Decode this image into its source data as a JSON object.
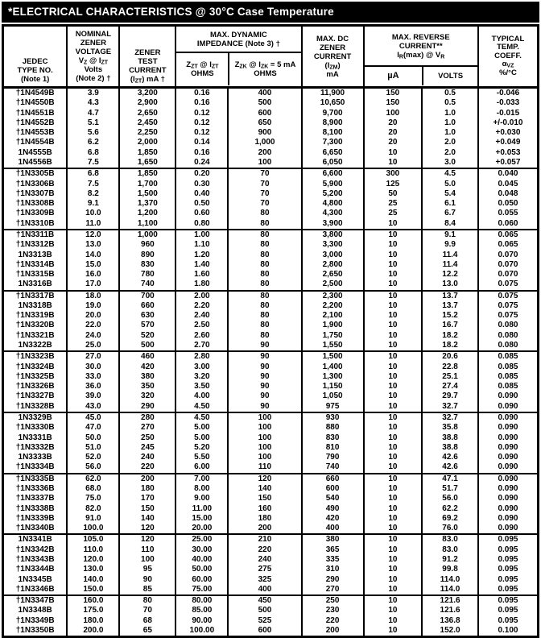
{
  "title": "*ELECTRICAL CHARACTERISTICS @ 30°C Case Temperature",
  "header": {
    "jedec": [
      "JEDEC",
      "TYPE NO.",
      "(Note 1)"
    ],
    "nominal": [
      "NOMINAL",
      "ZENER",
      "VOLTAGE",
      "V~Z~ @ I~ZT~",
      "Volts",
      "(Note 2) †"
    ],
    "test_current": [
      "ZENER",
      "TEST",
      "CURRENT",
      "(I~ZT~) mA †"
    ],
    "impedance_group": [
      "MAX. DYNAMIC",
      "IMPEDANCE (Note 3) †"
    ],
    "zzt": [
      "Z~ZT~ @ I~ZT~",
      "OHMS"
    ],
    "zzk": [
      "Z~ZK~ @ I~ZK~ = 5 mA",
      "OHMS"
    ],
    "izm": [
      "MAX. DC",
      "ZENER",
      "CURRENT",
      "(I~ZM~)",
      "mA"
    ],
    "reverse_group": [
      "MAX. REVERSE",
      "CURRENT**",
      "I~R~(max) @ V~R~"
    ],
    "ua": "µA",
    "volts": "VOLTS",
    "temp": [
      "TYPICAL",
      "TEMP.",
      "COEFF.",
      "α~VZ~",
      "%/°C"
    ]
  },
  "groups": [
    {
      "rows": [
        [
          "†1N4549B",
          "3.9",
          "3,200",
          "0.16",
          "400",
          "11,900",
          "150",
          "0.5",
          "-0.046"
        ],
        [
          "†1N4550B",
          "4.3",
          "2,900",
          "0.16",
          "500",
          "10,650",
          "150",
          "0.5",
          "-0.033"
        ],
        [
          "†1N4551B",
          "4.7",
          "2,650",
          "0.12",
          "600",
          "9,700",
          "100",
          "1.0",
          "-0.015"
        ],
        [
          "†1N4552B",
          "5.1",
          "2,450",
          "0.12",
          "650",
          "8,900",
          "20",
          "1.0",
          "+/-0.010"
        ],
        [
          "†1N4553B",
          "5.6",
          "2,250",
          "0.12",
          "900",
          "8,100",
          "20",
          "1.0",
          "+0.030"
        ],
        [
          "†1N4554B",
          "6.2",
          "2,000",
          "0.14",
          "1,000",
          "7,300",
          "20",
          "2.0",
          "+0.049"
        ],
        [
          "1N4555B",
          "6.8",
          "1,850",
          "0.16",
          "200",
          "6,650",
          "10",
          "2.0",
          "+0.053"
        ],
        [
          "1N4556B",
          "7.5",
          "1,650",
          "0.24",
          "100",
          "6,050",
          "10",
          "3.0",
          "+0.057"
        ]
      ]
    },
    {
      "rows": [
        [
          "†1N3305B",
          "6.8",
          "1,850",
          "0.20",
          "70",
          "6,600",
          "300",
          "4.5",
          "0.040"
        ],
        [
          "†1N3306B",
          "7.5",
          "1,700",
          "0.30",
          "70",
          "5,900",
          "125",
          "5.0",
          "0.045"
        ],
        [
          "†1N3307B",
          "8.2",
          "1,500",
          "0.40",
          "70",
          "5,200",
          "50",
          "5.4",
          "0.048"
        ],
        [
          "†1N3308B",
          "9.1",
          "1,370",
          "0.50",
          "70",
          "4,800",
          "25",
          "6.1",
          "0.050"
        ],
        [
          "†1N3309B",
          "10.0",
          "1,200",
          "0.60",
          "80",
          "4,300",
          "25",
          "6.7",
          "0.055"
        ],
        [
          "†1N3310B",
          "11.0",
          "1,100",
          "0.80",
          "80",
          "3,900",
          "10",
          "8.4",
          "0.060"
        ]
      ]
    },
    {
      "rows": [
        [
          "†1N3311B",
          "12.0",
          "1,000",
          "1.00",
          "80",
          "3,800",
          "10",
          "9.1",
          "0.065"
        ],
        [
          "†1N3312B",
          "13.0",
          "960",
          "1.10",
          "80",
          "3,300",
          "10",
          "9.9",
          "0.065"
        ],
        [
          "1N3313B",
          "14.0",
          "890",
          "1.20",
          "80",
          "3,000",
          "10",
          "11.4",
          "0.070"
        ],
        [
          "†1N3314B",
          "15.0",
          "830",
          "1.40",
          "80",
          "2,800",
          "10",
          "11.4",
          "0.070"
        ],
        [
          "†1N3315B",
          "16.0",
          "780",
          "1.60",
          "80",
          "2,650",
          "10",
          "12.2",
          "0.070"
        ],
        [
          "1N3316B",
          "17.0",
          "740",
          "1.80",
          "80",
          "2,500",
          "10",
          "13.0",
          "0.075"
        ]
      ]
    },
    {
      "rows": [
        [
          "†1N3317B",
          "18.0",
          "700",
          "2.00",
          "80",
          "2,300",
          "10",
          "13.7",
          "0.075"
        ],
        [
          "1N3318B",
          "19.0",
          "660",
          "2.20",
          "80",
          "2,200",
          "10",
          "13.7",
          "0.075"
        ],
        [
          "†1N3319B",
          "20.0",
          "630",
          "2.40",
          "80",
          "2,100",
          "10",
          "15.2",
          "0.075"
        ],
        [
          "†1N3320B",
          "22.0",
          "570",
          "2.50",
          "80",
          "1,900",
          "10",
          "16.7",
          "0.080"
        ],
        [
          "†1N3321B",
          "24.0",
          "520",
          "2.60",
          "80",
          "1,750",
          "10",
          "18.2",
          "0.080"
        ],
        [
          "1N3322B",
          "25.0",
          "500",
          "2.70",
          "90",
          "1,550",
          "10",
          "18.2",
          "0.080"
        ]
      ]
    },
    {
      "rows": [
        [
          "†1N3323B",
          "27.0",
          "460",
          "2.80",
          "90",
          "1,500",
          "10",
          "20.6",
          "0.085"
        ],
        [
          "†1N3324B",
          "30.0",
          "420",
          "3.00",
          "90",
          "1,400",
          "10",
          "22.8",
          "0.085"
        ],
        [
          "†1N3325B",
          "33.0",
          "380",
          "3.20",
          "90",
          "1,300",
          "10",
          "25.1",
          "0.085"
        ],
        [
          "†1N3326B",
          "36.0",
          "350",
          "3.50",
          "90",
          "1,150",
          "10",
          "27.4",
          "0.085"
        ],
        [
          "†1N3327B",
          "39.0",
          "320",
          "4.00",
          "90",
          "1,050",
          "10",
          "29.7",
          "0.090"
        ],
        [
          "†1N3328B",
          "43.0",
          "290",
          "4.50",
          "90",
          "975",
          "10",
          "32.7",
          "0.090"
        ]
      ]
    },
    {
      "rows": [
        [
          "1N3329B",
          "45.0",
          "280",
          "4.50",
          "100",
          "930",
          "10",
          "32.7",
          "0.090"
        ],
        [
          "†1N3330B",
          "47.0",
          "270",
          "5.00",
          "100",
          "880",
          "10",
          "35.8",
          "0.090"
        ],
        [
          "1N3331B",
          "50.0",
          "250",
          "5.00",
          "100",
          "830",
          "10",
          "38.8",
          "0.090"
        ],
        [
          "†1N3332B",
          "51.0",
          "245",
          "5.20",
          "100",
          "810",
          "10",
          "38.8",
          "0.090"
        ],
        [
          "1N3333B",
          "52.0",
          "240",
          "5.50",
          "100",
          "790",
          "10",
          "42.6",
          "0.090"
        ],
        [
          "†1N3334B",
          "56.0",
          "220",
          "6.00",
          "110",
          "740",
          "10",
          "42.6",
          "0.090"
        ]
      ]
    },
    {
      "rows": [
        [
          "†1N3335B",
          "62.0",
          "200",
          "7.00",
          "120",
          "660",
          "10",
          "47.1",
          "0.090"
        ],
        [
          "†1N3336B",
          "68.0",
          "180",
          "8.00",
          "140",
          "600",
          "10",
          "51.7",
          "0.090"
        ],
        [
          "†1N3337B",
          "75.0",
          "170",
          "9.00",
          "150",
          "540",
          "10",
          "56.0",
          "0.090"
        ],
        [
          "†1N3338B",
          "82.0",
          "150",
          "11.00",
          "160",
          "490",
          "10",
          "62.2",
          "0.090"
        ],
        [
          "†1N3339B",
          "91.0",
          "140",
          "15.00",
          "180",
          "420",
          "10",
          "69.2",
          "0.090"
        ],
        [
          "†1N3340B",
          "100.0",
          "120",
          "20.00",
          "200",
          "400",
          "10",
          "76.0",
          "0.090"
        ]
      ]
    },
    {
      "rows": [
        [
          "1N3341B",
          "105.0",
          "120",
          "25.00",
          "210",
          "380",
          "10",
          "83.0",
          "0.095"
        ],
        [
          "†1N3342B",
          "110.0",
          "110",
          "30.00",
          "220",
          "365",
          "10",
          "83.0",
          "0.095"
        ],
        [
          "†1N3343B",
          "120.0",
          "100",
          "40.00",
          "240",
          "335",
          "10",
          "91.2",
          "0.095"
        ],
        [
          "†1N3344B",
          "130.0",
          "95",
          "50.00",
          "275",
          "310",
          "10",
          "99.8",
          "0.095"
        ],
        [
          "1N3345B",
          "140.0",
          "90",
          "60.00",
          "325",
          "290",
          "10",
          "114.0",
          "0.095"
        ],
        [
          "†1N3346B",
          "150.0",
          "85",
          "75.00",
          "400",
          "270",
          "10",
          "114.0",
          "0.095"
        ]
      ]
    },
    {
      "rows": [
        [
          "†1N3347B",
          "160.0",
          "80",
          "80.00",
          "450",
          "250",
          "10",
          "121.6",
          "0.095"
        ],
        [
          "1N3348B",
          "175.0",
          "70",
          "85.00",
          "500",
          "230",
          "10",
          "121.6",
          "0.095"
        ],
        [
          "†1N3349B",
          "180.0",
          "68",
          "90.00",
          "525",
          "220",
          "10",
          "136.8",
          "0.095"
        ],
        [
          "†1N3350B",
          "200.0",
          "65",
          "100.00",
          "600",
          "200",
          "10",
          "152.0",
          "0.100"
        ]
      ]
    }
  ]
}
